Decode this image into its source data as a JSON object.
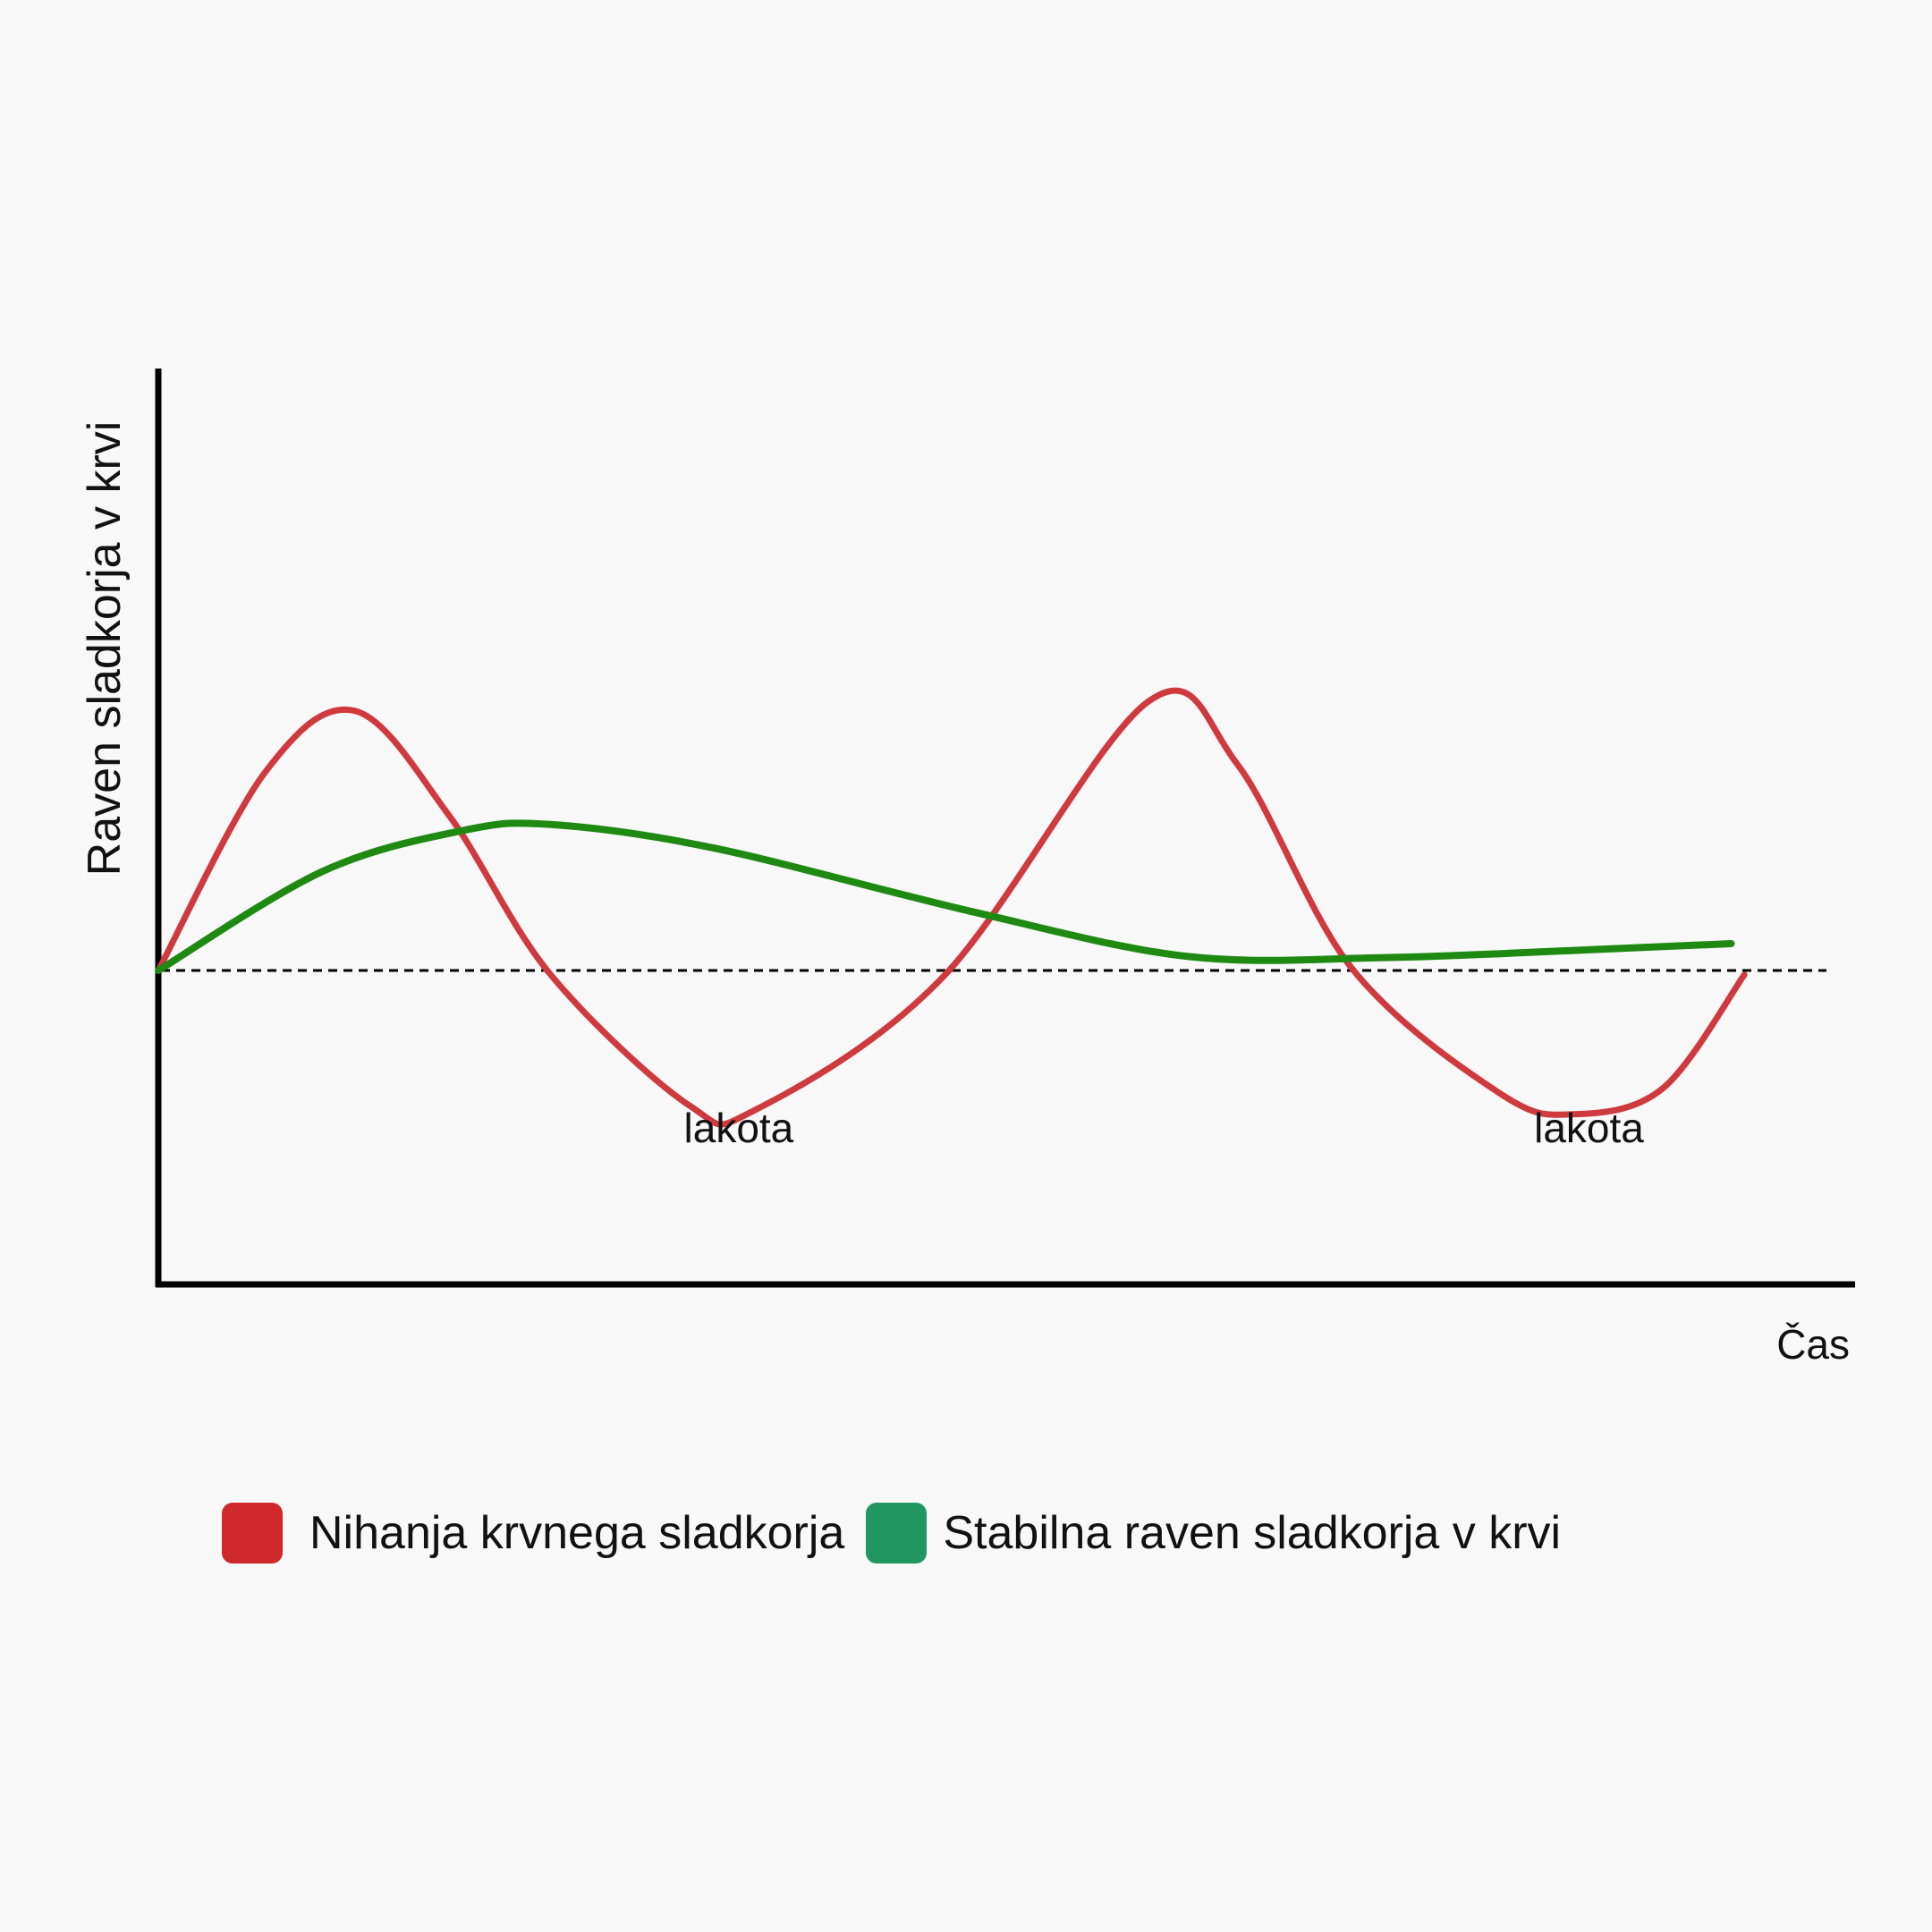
{
  "chart_data": {
    "type": "line",
    "title": "",
    "xlabel": "Čas",
    "ylabel": "Raven sladkorja v krvi",
    "xlim": [
      0,
      100
    ],
    "ylim": [
      -100,
      200
    ],
    "baseline": 0,
    "grid": false,
    "legend_position": "bottom",
    "series": [
      {
        "name": "Nihanja krvnega sladkorja",
        "color": "#cf3a3f",
        "points": [
          [
            0,
            0
          ],
          [
            6.5,
            92
          ],
          [
            12,
            121
          ],
          [
            17.8,
            72
          ],
          [
            24,
            -2
          ],
          [
            32.5,
            -63
          ],
          [
            36.5,
            -65
          ],
          [
            48,
            -3
          ],
          [
            60.5,
            125
          ],
          [
            66,
            96
          ],
          [
            73,
            1
          ],
          [
            82,
            -57
          ],
          [
            86.5,
            -67
          ],
          [
            92,
            -55
          ],
          [
            97,
            -2
          ]
        ]
      },
      {
        "name": "Stabilna raven sladkorja v krvi",
        "color": "#1e8a12",
        "points": [
          [
            0,
            0
          ],
          [
            10,
            46
          ],
          [
            18.5,
            65
          ],
          [
            24,
            68
          ],
          [
            34,
            57
          ],
          [
            50,
            27
          ],
          [
            63,
            6.5
          ],
          [
            75,
            6
          ],
          [
            87,
            9.5
          ],
          [
            96.2,
            12.5
          ]
        ]
      }
    ],
    "annotations": [
      {
        "text": "lakota",
        "x": 35.5,
        "y": -80
      },
      {
        "text": "lakota",
        "x": 87.5,
        "y": -80
      }
    ]
  },
  "legend": {
    "item1_label": "Nihanja krvnega sladkorja",
    "item1_color": "#d0282b",
    "item2_label": "Stabilna raven sladkorja v krvi",
    "item2_color": "#209660"
  }
}
